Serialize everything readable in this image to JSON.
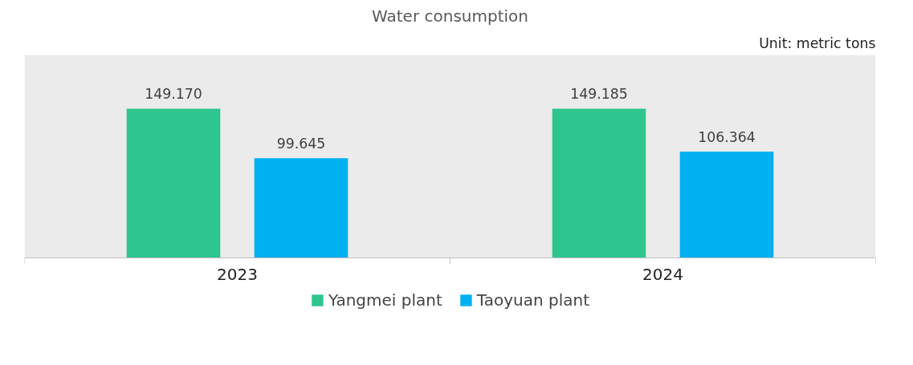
{
  "chart_data": {
    "type": "bar",
    "title": "Water consumption",
    "annotations": [
      "Unit: metric tons"
    ],
    "categories": [
      "2023",
      "2024"
    ],
    "series": [
      {
        "name": "Yangmei plant",
        "color": "#2ec58f",
        "values": [
          149.17,
          149.185
        ],
        "value_labels": [
          "149.170",
          "149.185"
        ]
      },
      {
        "name": "Taoyuan plant",
        "color": "#00b0f0",
        "values": [
          99.645,
          106.364
        ],
        "value_labels": [
          "99.645",
          "106.364"
        ]
      }
    ],
    "tick_labels": "x",
    "grid": false,
    "legend": "bottom"
  }
}
